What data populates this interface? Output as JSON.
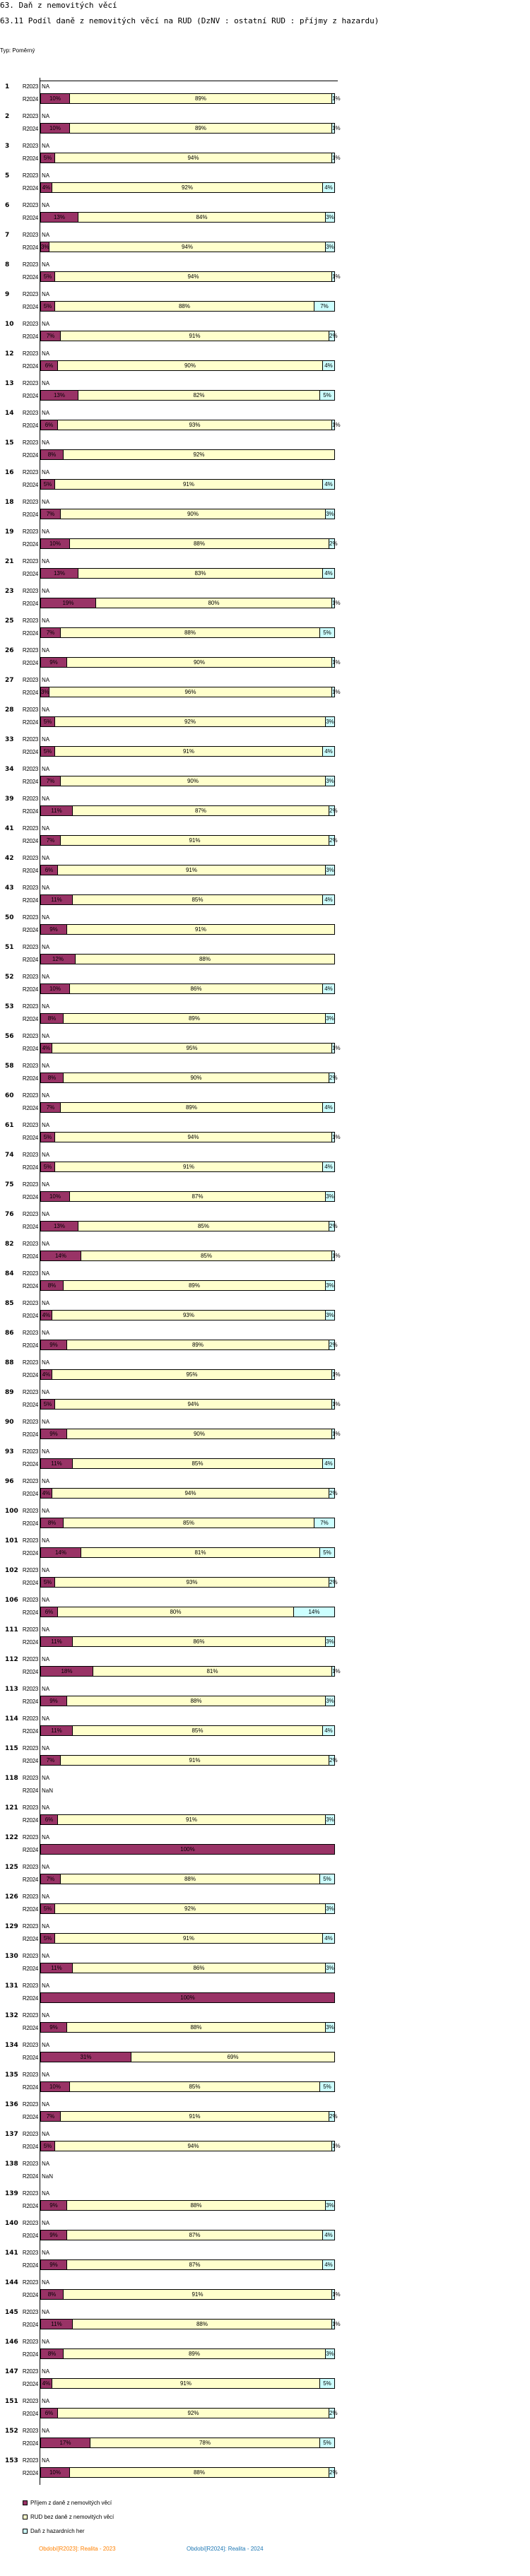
{
  "header": {
    "title": "63. Daň z nemovitých věcí",
    "subtitle": "63.11 Podíl daně z nemovitých věcí na RUD (DzNV : ostatní RUD : příjmy z hazardu)",
    "type_label": "Typ: Poměrný"
  },
  "chart_data": {
    "type": "bar",
    "orientation": "horizontal",
    "stacked": "percent",
    "xlim": [
      0,
      100
    ],
    "period_labels": [
      "R2023",
      "R2024"
    ],
    "series": [
      {
        "name": "Příjem z daně z nemovitých věcí",
        "color": "#993366"
      },
      {
        "name": "RUD bez daně z nemovitých věcí",
        "color": "#FFFFCC"
      },
      {
        "name": "Daň z hazardních her",
        "color": "#CCFFFF"
      }
    ],
    "groups": [
      {
        "id": "1",
        "r2023": "NA",
        "r2024": [
          10,
          89,
          1
        ]
      },
      {
        "id": "2",
        "r2023": "NA",
        "r2024": [
          10,
          89,
          1
        ]
      },
      {
        "id": "3",
        "r2023": "NA",
        "r2024": [
          5,
          94,
          1
        ]
      },
      {
        "id": "5",
        "r2023": "NA",
        "r2024": [
          4,
          92,
          4
        ]
      },
      {
        "id": "6",
        "r2023": "NA",
        "r2024": [
          13,
          84,
          3
        ]
      },
      {
        "id": "7",
        "r2023": "NA",
        "r2024": [
          3,
          94,
          3
        ]
      },
      {
        "id": "8",
        "r2023": "NA",
        "r2024": [
          5,
          94,
          1
        ]
      },
      {
        "id": "9",
        "r2023": "NA",
        "r2024": [
          5,
          88,
          7
        ]
      },
      {
        "id": "10",
        "r2023": "NA",
        "r2024": [
          7,
          91,
          2
        ]
      },
      {
        "id": "12",
        "r2023": "NA",
        "r2024": [
          6,
          90,
          4
        ]
      },
      {
        "id": "13",
        "r2023": "NA",
        "r2024": [
          13,
          82,
          5
        ]
      },
      {
        "id": "14",
        "r2023": "NA",
        "r2024": [
          6,
          93,
          1
        ]
      },
      {
        "id": "15",
        "r2023": "NA",
        "r2024": [
          8,
          92,
          0
        ]
      },
      {
        "id": "16",
        "r2023": "NA",
        "r2024": [
          5,
          91,
          4
        ]
      },
      {
        "id": "18",
        "r2023": "NA",
        "r2024": [
          7,
          90,
          3
        ]
      },
      {
        "id": "19",
        "r2023": "NA",
        "r2024": [
          10,
          88,
          2
        ]
      },
      {
        "id": "21",
        "r2023": "NA",
        "r2024": [
          13,
          83,
          4
        ]
      },
      {
        "id": "23",
        "r2023": "NA",
        "r2024": [
          19,
          80,
          1
        ]
      },
      {
        "id": "25",
        "r2023": "NA",
        "r2024": [
          7,
          88,
          5
        ]
      },
      {
        "id": "26",
        "r2023": "NA",
        "r2024": [
          9,
          90,
          1
        ]
      },
      {
        "id": "27",
        "r2023": "NA",
        "r2024": [
          3,
          96,
          1
        ]
      },
      {
        "id": "28",
        "r2023": "NA",
        "r2024": [
          5,
          92,
          3
        ]
      },
      {
        "id": "33",
        "r2023": "NA",
        "r2024": [
          5,
          91,
          4
        ]
      },
      {
        "id": "34",
        "r2023": "NA",
        "r2024": [
          7,
          90,
          3
        ]
      },
      {
        "id": "39",
        "r2023": "NA",
        "r2024": [
          11,
          87,
          2
        ]
      },
      {
        "id": "41",
        "r2023": "NA",
        "r2024": [
          7,
          91,
          2
        ]
      },
      {
        "id": "42",
        "r2023": "NA",
        "r2024": [
          6,
          91,
          3
        ]
      },
      {
        "id": "43",
        "r2023": "NA",
        "r2024": [
          11,
          85,
          4
        ]
      },
      {
        "id": "50",
        "r2023": "NA",
        "r2024": [
          9,
          91,
          0
        ]
      },
      {
        "id": "51",
        "r2023": "NA",
        "r2024": [
          12,
          88,
          0
        ]
      },
      {
        "id": "52",
        "r2023": "NA",
        "r2024": [
          10,
          86,
          4
        ]
      },
      {
        "id": "53",
        "r2023": "NA",
        "r2024": [
          8,
          89,
          3
        ]
      },
      {
        "id": "56",
        "r2023": "NA",
        "r2024": [
          4,
          95,
          1
        ]
      },
      {
        "id": "58",
        "r2023": "NA",
        "r2024": [
          8,
          90,
          2
        ]
      },
      {
        "id": "60",
        "r2023": "NA",
        "r2024": [
          7,
          89,
          4
        ]
      },
      {
        "id": "61",
        "r2023": "NA",
        "r2024": [
          5,
          94,
          1
        ]
      },
      {
        "id": "74",
        "r2023": "NA",
        "r2024": [
          5,
          91,
          4
        ]
      },
      {
        "id": "75",
        "r2023": "NA",
        "r2024": [
          10,
          87,
          3
        ]
      },
      {
        "id": "76",
        "r2023": "NA",
        "r2024": [
          13,
          85,
          2
        ]
      },
      {
        "id": "82",
        "r2023": "NA",
        "r2024": [
          14,
          85,
          1
        ]
      },
      {
        "id": "84",
        "r2023": "NA",
        "r2024": [
          8,
          89,
          3
        ]
      },
      {
        "id": "85",
        "r2023": "NA",
        "r2024": [
          4,
          93,
          3
        ]
      },
      {
        "id": "86",
        "r2023": "NA",
        "r2024": [
          9,
          89,
          2
        ]
      },
      {
        "id": "88",
        "r2023": "NA",
        "r2024": [
          4,
          95,
          1
        ]
      },
      {
        "id": "89",
        "r2023": "NA",
        "r2024": [
          5,
          94,
          1
        ]
      },
      {
        "id": "90",
        "r2023": "NA",
        "r2024": [
          9,
          90,
          1
        ]
      },
      {
        "id": "93",
        "r2023": "NA",
        "r2024": [
          11,
          85,
          4
        ]
      },
      {
        "id": "96",
        "r2023": "NA",
        "r2024": [
          4,
          94,
          2
        ]
      },
      {
        "id": "100",
        "r2023": "NA",
        "r2024": [
          8,
          85,
          7
        ]
      },
      {
        "id": "101",
        "r2023": "NA",
        "r2024": [
          14,
          81,
          5
        ]
      },
      {
        "id": "102",
        "r2023": "NA",
        "r2024": [
          5,
          93,
          2
        ]
      },
      {
        "id": "106",
        "r2023": "NA",
        "r2024": [
          6,
          80,
          14
        ]
      },
      {
        "id": "111",
        "r2023": "NA",
        "r2024": [
          11,
          86,
          3
        ]
      },
      {
        "id": "112",
        "r2023": "NA",
        "r2024": [
          18,
          81,
          1
        ]
      },
      {
        "id": "113",
        "r2023": "NA",
        "r2024": [
          9,
          88,
          3
        ]
      },
      {
        "id": "114",
        "r2023": "NA",
        "r2024": [
          11,
          85,
          4
        ]
      },
      {
        "id": "115",
        "r2023": "NA",
        "r2024": [
          7,
          91,
          2
        ]
      },
      {
        "id": "118",
        "r2023": "NA",
        "r2024": "NaN"
      },
      {
        "id": "121",
        "r2023": "NA",
        "r2024": [
          6,
          91,
          3
        ]
      },
      {
        "id": "122",
        "r2023": "NA",
        "r2024": [
          100,
          0,
          0
        ]
      },
      {
        "id": "125",
        "r2023": "NA",
        "r2024": [
          7,
          88,
          5
        ]
      },
      {
        "id": "126",
        "r2023": "NA",
        "r2024": [
          5,
          92,
          3
        ]
      },
      {
        "id": "129",
        "r2023": "NA",
        "r2024": [
          5,
          91,
          4
        ]
      },
      {
        "id": "130",
        "r2023": "NA",
        "r2024": [
          11,
          86,
          3
        ]
      },
      {
        "id": "131",
        "r2023": "NA",
        "r2024": [
          100,
          0,
          0
        ]
      },
      {
        "id": "132",
        "r2023": "NA",
        "r2024": [
          9,
          88,
          3
        ]
      },
      {
        "id": "134",
        "r2023": "NA",
        "r2024": [
          31,
          69,
          0
        ]
      },
      {
        "id": "135",
        "r2023": "NA",
        "r2024": [
          10,
          85,
          5
        ]
      },
      {
        "id": "136",
        "r2023": "NA",
        "r2024": [
          7,
          91,
          2
        ]
      },
      {
        "id": "137",
        "r2023": "NA",
        "r2024": [
          5,
          94,
          1
        ]
      },
      {
        "id": "138",
        "r2023": "NA",
        "r2024": "NaN"
      },
      {
        "id": "139",
        "r2023": "NA",
        "r2024": [
          9,
          88,
          3
        ]
      },
      {
        "id": "140",
        "r2023": "NA",
        "r2024": [
          9,
          87,
          4
        ]
      },
      {
        "id": "141",
        "r2023": "NA",
        "r2024": [
          9,
          87,
          4
        ]
      },
      {
        "id": "144",
        "r2023": "NA",
        "r2024": [
          8,
          91,
          1
        ]
      },
      {
        "id": "145",
        "r2023": "NA",
        "r2024": [
          11,
          88,
          1
        ]
      },
      {
        "id": "146",
        "r2023": "NA",
        "r2024": [
          8,
          89,
          3
        ]
      },
      {
        "id": "147",
        "r2023": "NA",
        "r2024": [
          4,
          91,
          5
        ]
      },
      {
        "id": "151",
        "r2023": "NA",
        "r2024": [
          6,
          92,
          2
        ]
      },
      {
        "id": "152",
        "r2023": "NA",
        "r2024": [
          17,
          78,
          5
        ]
      },
      {
        "id": "153",
        "r2023": "NA",
        "r2024": [
          10,
          88,
          2
        ]
      }
    ],
    "legend": [
      "Příjem z daně z nemovitých věcí",
      "RUD bez daně z nemovitých věcí",
      "Daň z hazardních her"
    ],
    "legend_position": "bottom-left"
  },
  "periods": [
    {
      "label": "Období[R2023]: Realita - 2023",
      "color": "#FF8000"
    },
    {
      "label": "Období[R2024]: Realita - 2024",
      "color": "#1F78B4"
    }
  ]
}
